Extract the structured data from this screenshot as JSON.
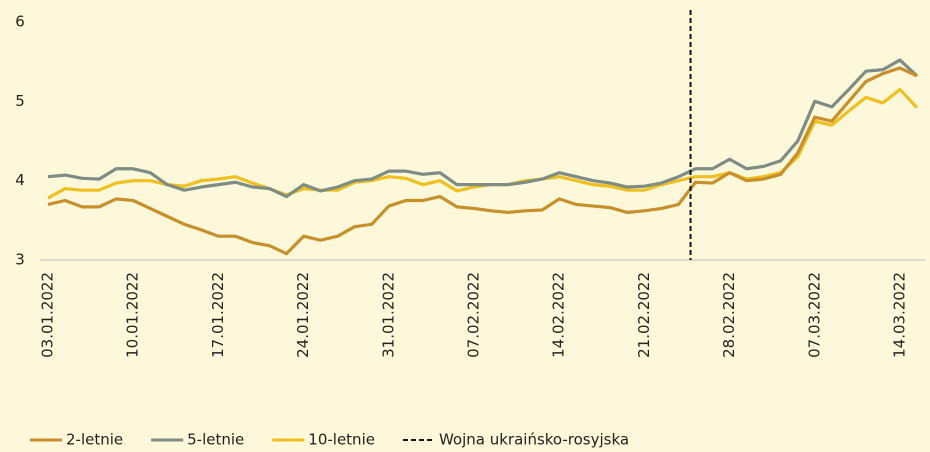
{
  "chart_data": {
    "type": "line",
    "categories": [
      "03.01.2022",
      null,
      null,
      null,
      null,
      "10.01.2022",
      null,
      null,
      null,
      null,
      "17.01.2022",
      null,
      null,
      null,
      null,
      "24.01.2022",
      null,
      null,
      null,
      null,
      "31.01.2022",
      null,
      null,
      null,
      null,
      "07.02.2022",
      null,
      null,
      null,
      null,
      "14.02.2022",
      null,
      null,
      null,
      null,
      "21.02.2022",
      null,
      null,
      null,
      null,
      "28.02.2022",
      null,
      null,
      null,
      null,
      "07.03.2022",
      null,
      null,
      null,
      null,
      "14.03.2022",
      null
    ],
    "series": [
      {
        "name": "2-letnie",
        "color": "#c8902a",
        "values": [
          3.7,
          3.75,
          3.67,
          3.67,
          3.77,
          3.75,
          3.65,
          3.55,
          3.45,
          3.38,
          3.3,
          3.3,
          3.22,
          3.18,
          3.08,
          3.3,
          3.25,
          3.3,
          3.42,
          3.45,
          3.68,
          3.75,
          3.75,
          3.8,
          3.67,
          3.65,
          3.62,
          3.6,
          3.62,
          3.63,
          3.77,
          3.7,
          3.68,
          3.66,
          3.6,
          3.62,
          3.65,
          3.7,
          3.98,
          3.97,
          4.1,
          4.0,
          4.02,
          4.08,
          4.35,
          4.8,
          4.75,
          5.0,
          5.25,
          5.35,
          5.42,
          5.32
        ]
      },
      {
        "name": "5-letnie",
        "color": "#7d8c84",
        "values": [
          4.05,
          4.07,
          4.03,
          4.02,
          4.15,
          4.15,
          4.1,
          3.95,
          3.88,
          3.92,
          3.95,
          3.98,
          3.92,
          3.9,
          3.8,
          3.95,
          3.87,
          3.92,
          4.0,
          4.02,
          4.12,
          4.12,
          4.08,
          4.1,
          3.95,
          3.95,
          3.95,
          3.95,
          3.98,
          4.02,
          4.1,
          4.05,
          4.0,
          3.97,
          3.92,
          3.93,
          3.97,
          4.05,
          4.15,
          4.15,
          4.27,
          4.15,
          4.18,
          4.25,
          4.5,
          5.0,
          4.93,
          5.15,
          5.38,
          5.4,
          5.52,
          5.32
        ]
      },
      {
        "name": "10-letnie",
        "color": "#f0c020",
        "values": [
          3.78,
          3.9,
          3.88,
          3.88,
          3.97,
          4.0,
          4.0,
          3.95,
          3.93,
          4.0,
          4.02,
          4.05,
          3.97,
          3.9,
          3.82,
          3.9,
          3.88,
          3.88,
          3.98,
          4.0,
          4.05,
          4.03,
          3.95,
          4.0,
          3.87,
          3.92,
          3.95,
          3.95,
          4.0,
          4.02,
          4.05,
          4.0,
          3.95,
          3.93,
          3.88,
          3.88,
          3.95,
          4.0,
          4.05,
          4.05,
          4.1,
          4.02,
          4.05,
          4.1,
          4.3,
          4.75,
          4.7,
          4.88,
          5.05,
          4.98,
          5.15,
          4.92
        ]
      }
    ],
    "vline": {
      "category_index": 38,
      "label": "Wojna ukraińsko-rosyjska",
      "color": "#111"
    },
    "ylim": [
      3,
      6
    ],
    "yticks": [
      3,
      4,
      5,
      6
    ],
    "legend": "bottom-left"
  }
}
